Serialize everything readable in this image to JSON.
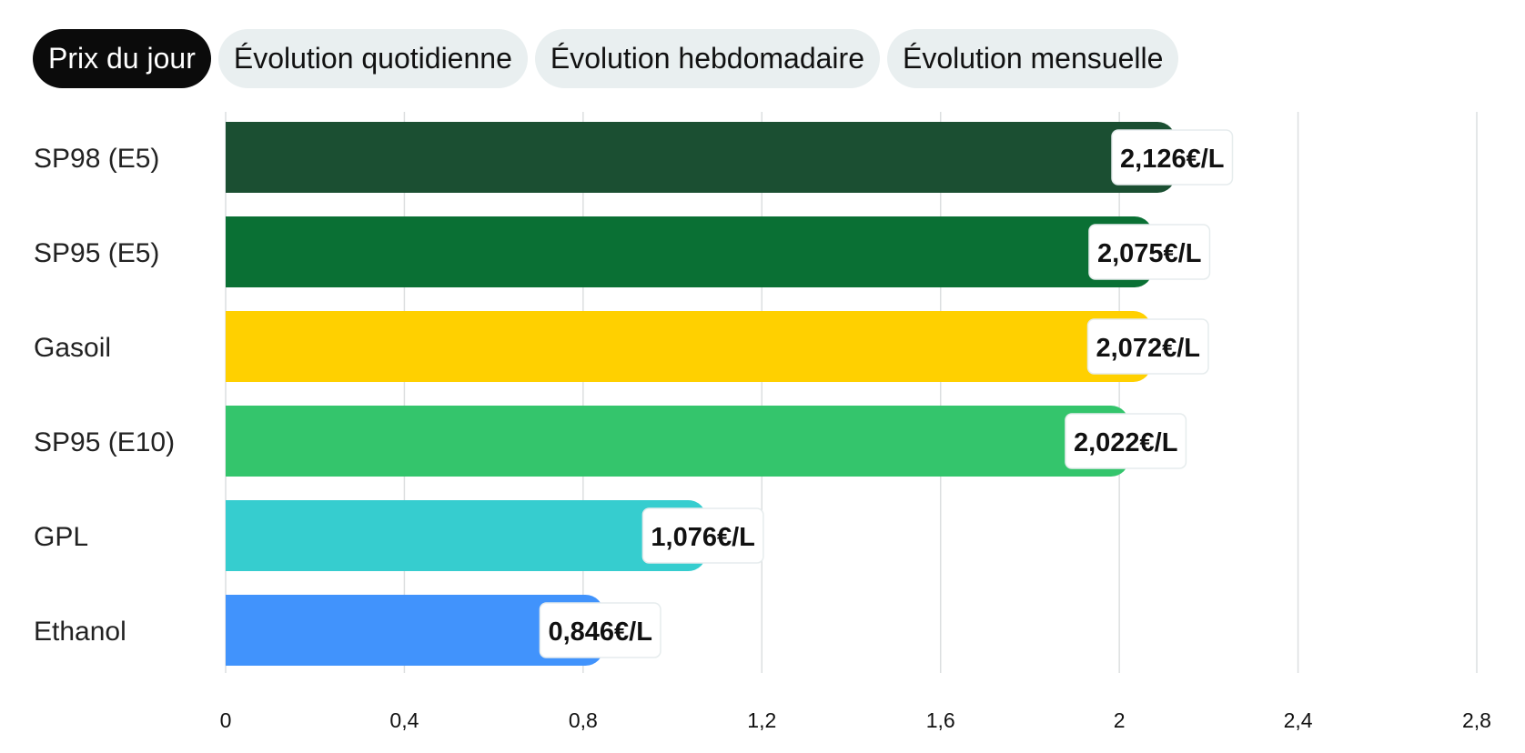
{
  "tabs": [
    {
      "label": "Prix du jour",
      "active": true
    },
    {
      "label": "Évolution quotidienne",
      "active": false
    },
    {
      "label": "Évolution hebdomadaire",
      "active": false
    },
    {
      "label": "Évolution mensuelle",
      "active": false
    }
  ],
  "chart_data": {
    "type": "bar",
    "orientation": "horizontal",
    "title": "",
    "xlabel": "",
    "ylabel": "",
    "categories": [
      "SP98 (E5)",
      "SP95 (E5)",
      "Gasoil",
      "SP95 (E10)",
      "GPL",
      "Ethanol"
    ],
    "values": [
      2.126,
      2.075,
      2.072,
      2.022,
      1.076,
      0.846
    ],
    "value_labels": [
      "2,126€/L",
      "2,075€/L",
      "2,072€/L",
      "2,022€/L",
      "1,076€/L",
      "0,846€/L"
    ],
    "colors": [
      "#1b4f32",
      "#0a7034",
      "#ffd000",
      "#34c56c",
      "#36cdcf",
      "#4193fc"
    ],
    "xlim": [
      0,
      2.8
    ],
    "x_ticks": [
      0,
      0.4,
      0.8,
      1.2,
      1.6,
      2,
      2.4,
      2.8
    ],
    "x_tick_labels": [
      "0",
      "0,4",
      "0,8",
      "1,2",
      "1,6",
      "2",
      "2,4",
      "2,8"
    ],
    "grid": true,
    "gridline_color": "#dcdfe0"
  }
}
